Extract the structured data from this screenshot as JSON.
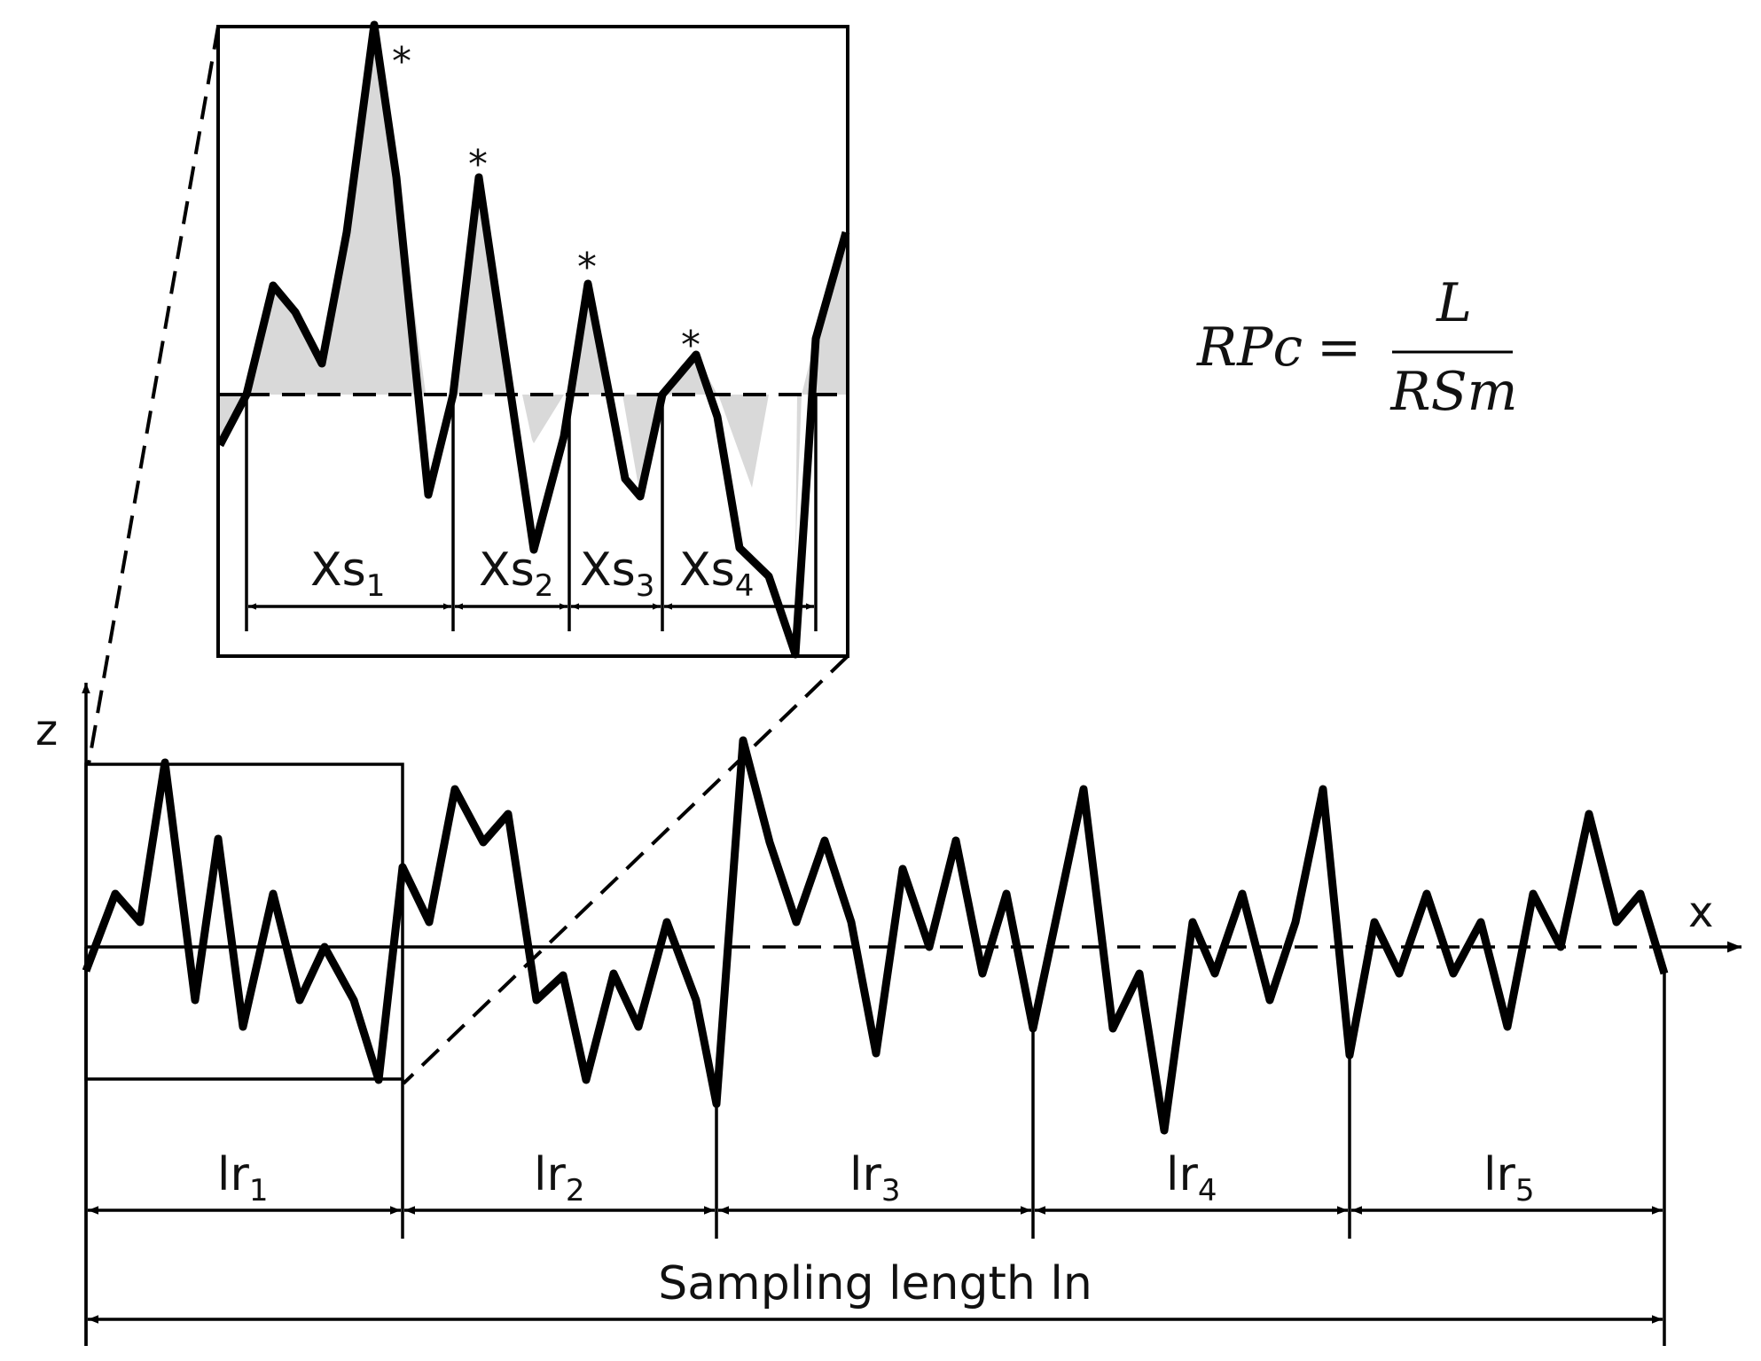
{
  "axes": {
    "x_label": "x",
    "z_label": "z"
  },
  "zoom_segments": [
    {
      "base": "Xs",
      "sub": "1"
    },
    {
      "base": "Xs",
      "sub": "2"
    },
    {
      "base": "Xs",
      "sub": "3"
    },
    {
      "base": "Xs",
      "sub": "4"
    }
  ],
  "peak_marker": "*",
  "sampling_segments": [
    {
      "base": "lr",
      "sub": "1"
    },
    {
      "base": "lr",
      "sub": "2"
    },
    {
      "base": "lr",
      "sub": "3"
    },
    {
      "base": "lr",
      "sub": "4"
    },
    {
      "base": "lr",
      "sub": "5"
    }
  ],
  "total_length_label": "Sampling length ln",
  "formula": {
    "lhs": "RPc",
    "equals": "=",
    "numerator": "L",
    "denominator": "RSm"
  },
  "colors": {
    "line": "#000000",
    "fill": "#d9d9d9",
    "background": "#ffffff"
  }
}
